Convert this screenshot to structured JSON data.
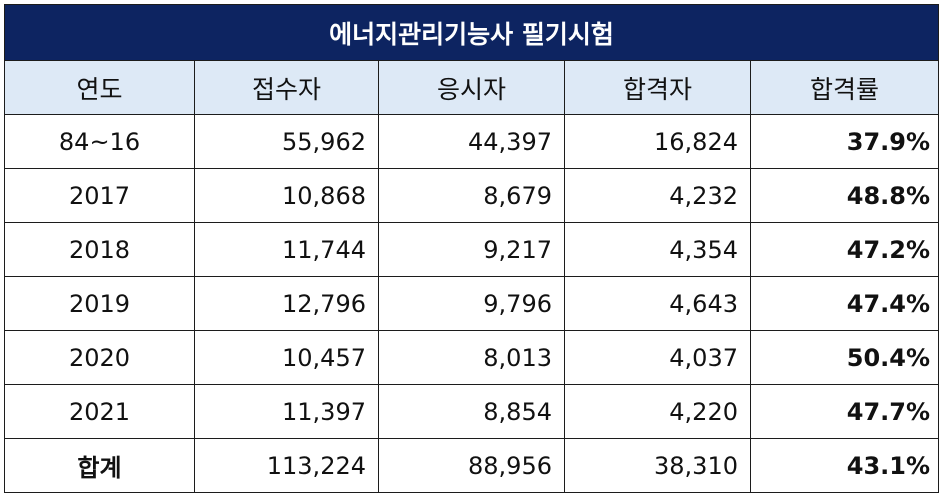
{
  "title": "에너지관리기능사 필기시험",
  "headers": [
    "연도",
    "접수자",
    "응시자",
    "합격자",
    "합격률"
  ],
  "rows": [
    {
      "year": "84~16",
      "applicants": "55,962",
      "examinees": "44,397",
      "passers": "16,824",
      "pass_rate": "37.9%"
    },
    {
      "year": "2017",
      "applicants": "10,868",
      "examinees": "8,679",
      "passers": "4,232",
      "pass_rate": "48.8%"
    },
    {
      "year": "2018",
      "applicants": "11,744",
      "examinees": "9,217",
      "passers": "4,354",
      "pass_rate": "47.2%"
    },
    {
      "year": "2019",
      "applicants": "12,796",
      "examinees": "9,796",
      "passers": "4,643",
      "pass_rate": "47.4%"
    },
    {
      "year": "2020",
      "applicants": "10,457",
      "examinees": "8,013",
      "passers": "4,037",
      "pass_rate": "50.4%"
    },
    {
      "year": "2021",
      "applicants": "11,397",
      "examinees": "8,854",
      "passers": "4,220",
      "pass_rate": "47.7%"
    }
  ],
  "total": {
    "year": "합계",
    "applicants": "113,224",
    "examinees": "88,956",
    "passers": "38,310",
    "pass_rate": "43.1%"
  },
  "colors": {
    "title_bg": "#0d2461",
    "header_bg": "#dde9f6",
    "border": "#1c1c1c"
  }
}
